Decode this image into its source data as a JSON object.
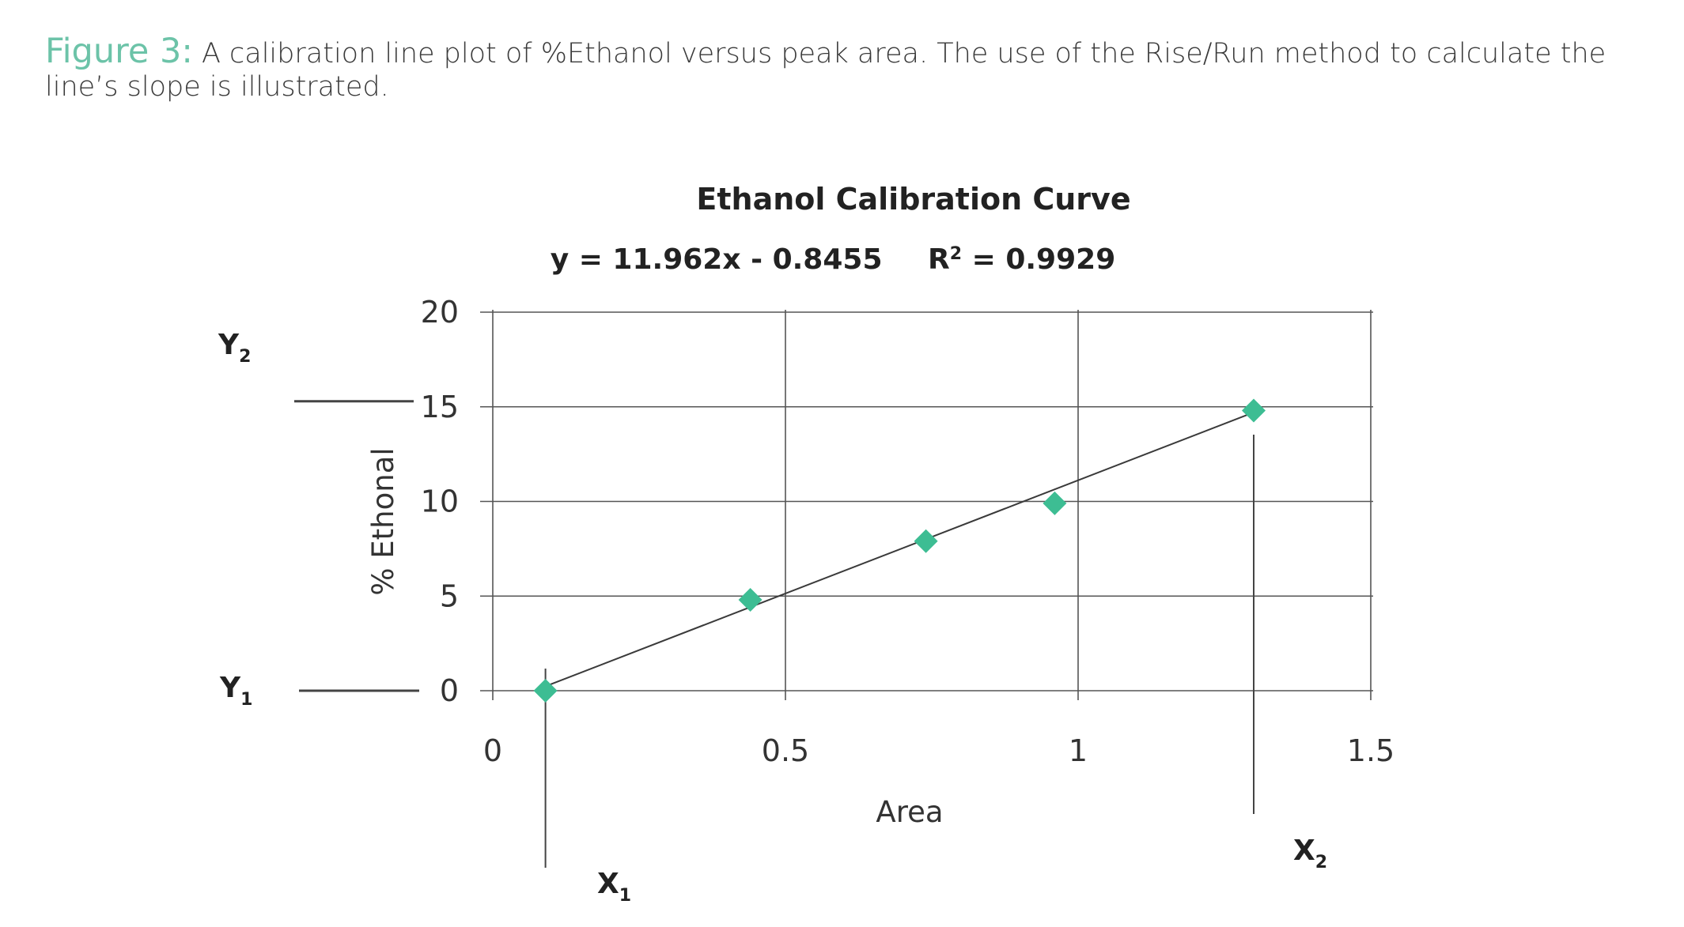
{
  "caption": {
    "label": "Figure 3:",
    "text": "A calibration line plot of %Ethanol versus peak area. The use of the Rise/Run method to calculate the line’s slope is illustrated."
  },
  "colors": {
    "accent": "#6cc3a8",
    "marker": "#3dbd93",
    "line": "#444444",
    "grid": "#555555"
  },
  "chart_data": {
    "type": "scatter",
    "title": "Ethanol Calibration Curve",
    "equation": "y = 11.962x - 0.8455",
    "r2_label": "R",
    "r2_sup": "2",
    "r2_value": " = 0.9929",
    "xlabel": "Area",
    "ylabel": "% Ethonal",
    "xlim": [
      0,
      1.5
    ],
    "ylim": [
      0,
      20
    ],
    "xticks": [
      0,
      0.5,
      1,
      1.5
    ],
    "xtick_labels": [
      "0",
      "0.5",
      "1",
      "1.5"
    ],
    "yticks": [
      0,
      5,
      10,
      15,
      20
    ],
    "ytick_labels": [
      "0",
      "5",
      "10",
      "15",
      "20"
    ],
    "grid": true,
    "points": [
      {
        "x": 0.09,
        "y": 0
      },
      {
        "x": 0.44,
        "y": 4.8
      },
      {
        "x": 0.74,
        "y": 7.9
      },
      {
        "x": 0.96,
        "y": 9.9
      },
      {
        "x": 1.3,
        "y": 14.8
      }
    ],
    "trendline": {
      "slope": 11.962,
      "intercept": -0.8455,
      "x_start": 0.09,
      "x_end": 1.3
    },
    "annotations": {
      "x1": {
        "main": "X",
        "sub": "1",
        "x": 0.09
      },
      "x2": {
        "main": "X",
        "sub": "2",
        "x": 1.3
      },
      "y1": {
        "main": "Y",
        "sub": "1",
        "y": 0
      },
      "y2": {
        "main": "Y",
        "sub": "2",
        "y": 15
      }
    }
  }
}
